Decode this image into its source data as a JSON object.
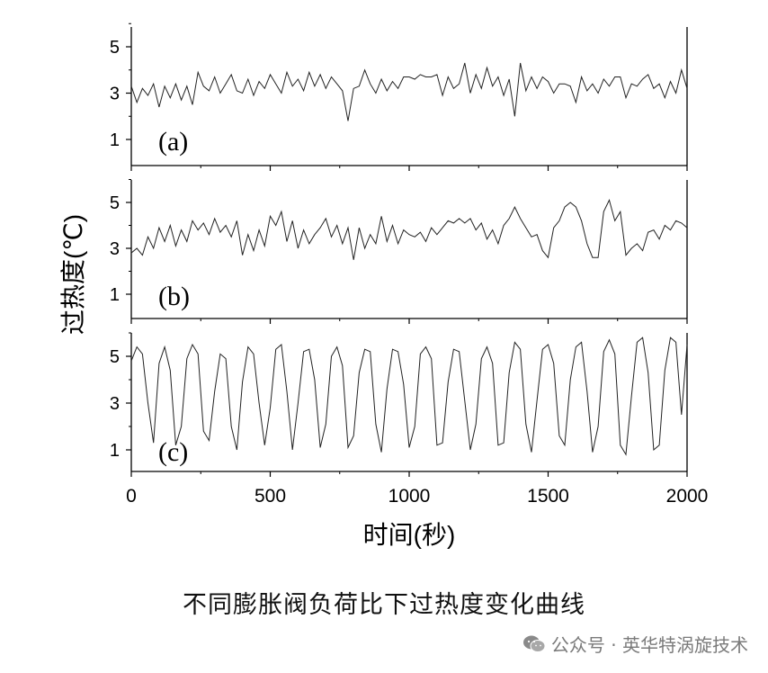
{
  "chart_data": {
    "type": "line",
    "ylabel": "过热度(℃)",
    "xlabel": "时间(秒)",
    "xlim": [
      0,
      2000
    ],
    "x_ticks": [
      "0",
      "500",
      "1000",
      "1500",
      "2000"
    ],
    "panels": [
      {
        "label": "(a)",
        "ylim": [
          0,
          6
        ],
        "y_ticks": [
          "1",
          "3",
          "5"
        ],
        "x": [
          0,
          20,
          40,
          60,
          80,
          100,
          120,
          140,
          160,
          180,
          200,
          220,
          240,
          260,
          280,
          300,
          320,
          340,
          360,
          380,
          400,
          420,
          440,
          460,
          480,
          500,
          520,
          540,
          560,
          580,
          600,
          620,
          640,
          660,
          680,
          700,
          720,
          740,
          760,
          780,
          800,
          820,
          840,
          860,
          880,
          900,
          920,
          940,
          960,
          980,
          1000,
          1020,
          1040,
          1060,
          1080,
          1100,
          1120,
          1140,
          1160,
          1180,
          1200,
          1220,
          1240,
          1260,
          1280,
          1300,
          1320,
          1340,
          1360,
          1380,
          1400,
          1420,
          1440,
          1460,
          1480,
          1500,
          1520,
          1540,
          1560,
          1580,
          1600,
          1620,
          1640,
          1660,
          1680,
          1700,
          1720,
          1740,
          1760,
          1780,
          1800,
          1820,
          1840,
          1860,
          1880,
          1900,
          1920,
          1940,
          1960,
          1980,
          2000
        ],
        "values": [
          3.3,
          2.6,
          3.2,
          2.9,
          3.4,
          2.4,
          3.3,
          2.8,
          3.4,
          2.7,
          3.3,
          2.5,
          3.9,
          3.3,
          3.1,
          3.7,
          3.0,
          3.4,
          3.8,
          3.1,
          3.0,
          3.6,
          2.9,
          3.5,
          3.2,
          3.8,
          3.4,
          3.0,
          3.9,
          3.3,
          3.6,
          3.1,
          3.9,
          3.3,
          3.8,
          3.2,
          3.7,
          3.4,
          3.1,
          1.8,
          3.2,
          3.3,
          4.0,
          3.4,
          3.0,
          3.6,
          3.1,
          3.5,
          3.2,
          3.7,
          3.7,
          3.6,
          3.8,
          3.7,
          3.7,
          3.8,
          2.9,
          3.7,
          3.2,
          3.4,
          4.3,
          3.0,
          3.8,
          3.2,
          4.1,
          3.3,
          3.7,
          2.9,
          3.6,
          2.0,
          4.3,
          3.1,
          3.7,
          3.2,
          3.7,
          3.5,
          3.0,
          3.4,
          3.4,
          3.3,
          2.6,
          3.7,
          3.1,
          3.4,
          3.0,
          3.6,
          3.3,
          3.7,
          3.7,
          2.8,
          3.4,
          3.3,
          3.6,
          3.8,
          3.2,
          3.4,
          2.8,
          3.5,
          3.0,
          4.0,
          3.2
        ]
      },
      {
        "label": "(b)",
        "ylim": [
          0,
          6
        ],
        "y_ticks": [
          "1",
          "3",
          "5"
        ],
        "x": [
          0,
          20,
          40,
          60,
          80,
          100,
          120,
          140,
          160,
          180,
          200,
          220,
          240,
          260,
          280,
          300,
          320,
          340,
          360,
          380,
          400,
          420,
          440,
          460,
          480,
          500,
          520,
          540,
          560,
          580,
          600,
          620,
          640,
          660,
          680,
          700,
          720,
          740,
          760,
          780,
          800,
          820,
          840,
          860,
          880,
          900,
          920,
          940,
          960,
          980,
          1000,
          1020,
          1040,
          1060,
          1080,
          1100,
          1120,
          1140,
          1160,
          1180,
          1200,
          1220,
          1240,
          1260,
          1280,
          1300,
          1320,
          1340,
          1360,
          1380,
          1400,
          1420,
          1440,
          1460,
          1480,
          1500,
          1520,
          1540,
          1560,
          1580,
          1600,
          1620,
          1640,
          1660,
          1680,
          1700,
          1720,
          1740,
          1760,
          1780,
          1800,
          1820,
          1840,
          1860,
          1880,
          1900,
          1920,
          1940,
          1960,
          1980,
          2000
        ],
        "values": [
          2.8,
          3.0,
          2.7,
          3.5,
          3.0,
          3.9,
          3.3,
          4.0,
          3.1,
          3.8,
          3.3,
          4.2,
          3.8,
          4.1,
          3.6,
          4.3,
          3.7,
          4.0,
          3.5,
          4.2,
          2.7,
          3.6,
          2.9,
          3.8,
          3.1,
          4.4,
          4.0,
          4.6,
          3.3,
          4.2,
          3.0,
          3.8,
          3.2,
          3.6,
          3.9,
          4.3,
          3.5,
          4.0,
          3.2,
          3.9,
          2.5,
          3.9,
          3.0,
          3.6,
          3.2,
          4.4,
          3.3,
          4.0,
          3.2,
          3.8,
          3.6,
          3.5,
          3.7,
          3.3,
          3.9,
          3.6,
          3.9,
          4.2,
          4.1,
          4.3,
          4.1,
          4.3,
          3.8,
          4.1,
          3.4,
          3.8,
          3.2,
          4.0,
          4.3,
          4.8,
          4.3,
          3.9,
          3.5,
          3.6,
          2.9,
          2.6,
          3.9,
          4.2,
          4.8,
          5.0,
          4.8,
          4.2,
          3.2,
          2.6,
          2.6,
          4.6,
          5.1,
          4.2,
          4.6,
          2.7,
          3.0,
          3.2,
          2.9,
          3.7,
          3.8,
          3.4,
          4.0,
          3.8,
          4.2,
          4.1,
          3.9
        ]
      },
      {
        "label": "(c)",
        "ylim": [
          0,
          6.2
        ],
        "y_ticks": [
          "1",
          "3",
          "5"
        ],
        "x": [
          0,
          20,
          40,
          60,
          80,
          100,
          120,
          140,
          160,
          180,
          200,
          220,
          240,
          260,
          280,
          300,
          320,
          340,
          360,
          380,
          400,
          420,
          440,
          460,
          480,
          500,
          520,
          540,
          560,
          580,
          600,
          620,
          640,
          660,
          680,
          700,
          720,
          740,
          760,
          780,
          800,
          820,
          840,
          860,
          880,
          900,
          920,
          940,
          960,
          980,
          1000,
          1020,
          1040,
          1060,
          1080,
          1100,
          1120,
          1140,
          1160,
          1180,
          1200,
          1220,
          1240,
          1260,
          1280,
          1300,
          1320,
          1340,
          1360,
          1380,
          1400,
          1420,
          1440,
          1460,
          1480,
          1500,
          1520,
          1540,
          1560,
          1580,
          1600,
          1620,
          1640,
          1660,
          1680,
          1700,
          1720,
          1740,
          1760,
          1780,
          1800,
          1820,
          1840,
          1860,
          1880,
          1900,
          1920,
          1940,
          1960,
          1980,
          2000
        ],
        "values": [
          4.8,
          5.4,
          5.1,
          3.0,
          1.3,
          4.7,
          5.4,
          4.4,
          1.2,
          2.0,
          4.9,
          5.5,
          5.1,
          1.8,
          1.4,
          3.5,
          5.1,
          4.9,
          2.0,
          1.0,
          3.9,
          5.4,
          5.1,
          3.0,
          1.2,
          2.8,
          5.3,
          5.5,
          3.5,
          1.0,
          3.0,
          5.2,
          5.3,
          4.0,
          1.1,
          2.1,
          5.0,
          5.4,
          4.6,
          1.1,
          1.6,
          4.3,
          5.3,
          5.2,
          2.1,
          0.9,
          3.6,
          5.3,
          5.2,
          3.8,
          1.1,
          2.0,
          5.1,
          5.4,
          4.9,
          1.2,
          1.3,
          3.9,
          5.3,
          5.2,
          3.1,
          1.0,
          2.1,
          4.9,
          5.4,
          4.7,
          1.2,
          1.3,
          4.3,
          5.6,
          5.3,
          2.1,
          0.9,
          3.1,
          5.3,
          5.5,
          4.7,
          1.6,
          1.2,
          4.0,
          5.4,
          5.6,
          3.5,
          0.9,
          2.0,
          5.2,
          5.7,
          5.1,
          1.2,
          0.8,
          3.3,
          5.6,
          5.8,
          4.3,
          1.0,
          1.2,
          4.4,
          5.8,
          5.6,
          2.5,
          5.5
        ]
      }
    ]
  },
  "caption": "不同膨胀阀负荷比下过热度变化曲线",
  "watermark": {
    "text": "公众号 · 英华特涡旋技术",
    "icon": "wechat-icon"
  }
}
